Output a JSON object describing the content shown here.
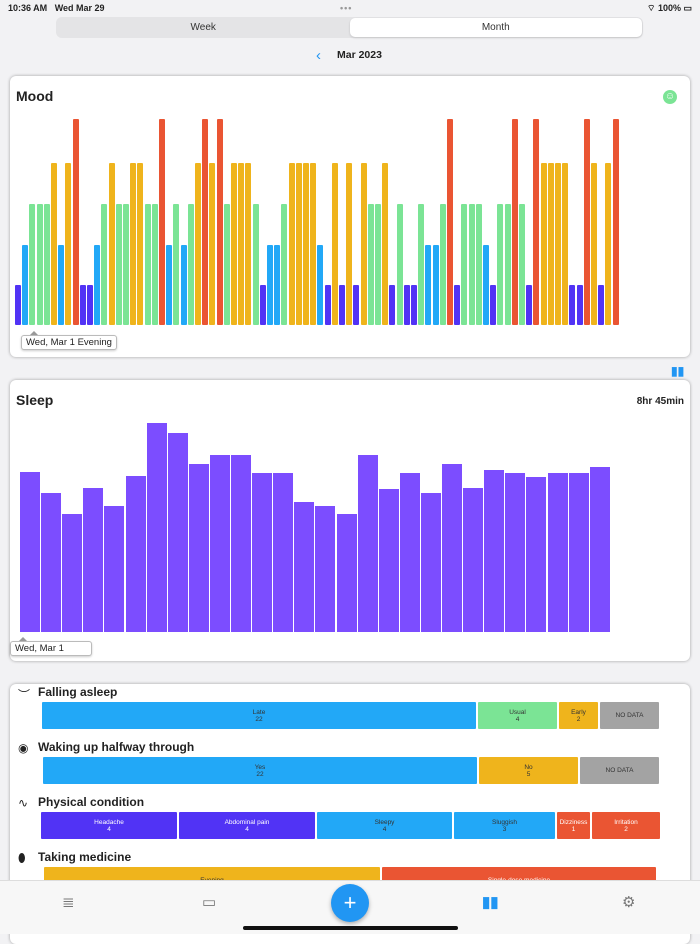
{
  "status": {
    "time": "10:36 AM",
    "date": "Wed Mar 29",
    "battery": "100%"
  },
  "segments": [
    "Week",
    "Month"
  ],
  "nav": {
    "period": "Mar 2023"
  },
  "colors": {
    "1": "#5133f5",
    "2": "#22a8f7",
    "3": "#7be495",
    "4": "#efb41c",
    "5": "#ea5533",
    "sleep": "#7c4dff",
    "nodata": "#a3a3a3"
  },
  "mood": {
    "title": "Mood",
    "tooltip": "Wed, Mar 1 Evening",
    "levels": [
      1,
      2,
      3,
      3,
      3,
      4,
      2,
      4,
      5,
      1,
      1,
      2,
      3,
      4,
      3,
      3,
      4,
      4,
      3,
      3,
      5,
      2,
      3,
      2,
      3,
      4,
      5,
      4,
      5,
      3,
      4,
      4,
      4,
      3,
      1,
      2,
      2,
      3,
      4,
      4,
      4,
      4,
      2,
      1,
      4,
      1,
      4,
      1,
      4,
      3,
      3,
      4,
      1,
      3,
      1,
      1,
      3,
      2,
      2,
      3,
      5,
      1,
      3,
      3,
      3,
      2,
      1,
      3,
      3,
      5,
      3,
      1,
      5,
      4,
      4,
      4,
      4,
      1,
      1,
      5,
      4,
      1,
      4,
      5
    ]
  },
  "sleep": {
    "title": "Sleep",
    "average": "8hr 45min",
    "tooltip": "Wed, Mar 1",
    "minutes": [
      540,
      469,
      398,
      486,
      425,
      527,
      706,
      672,
      567,
      598,
      598,
      537,
      537,
      439,
      425,
      398,
      598,
      483,
      537,
      469,
      567,
      486,
      547,
      537,
      523,
      537,
      537,
      557
    ],
    "ymax": 750
  },
  "stats": [
    {
      "title": "Falling asleep",
      "icon": "closed-eye",
      "segments": [
        {
          "label": "Late",
          "count": "22",
          "color": "#22a8f7"
        },
        {
          "label": "Usual",
          "count": "4",
          "color": "#7be495"
        },
        {
          "label": "Early",
          "count": "2",
          "color": "#efb41c"
        },
        {
          "label": "NO DATA",
          "count": "",
          "color": "#a3a3a3"
        }
      ]
    },
    {
      "title": "Waking up halfway through",
      "icon": "eye",
      "segments": [
        {
          "label": "Yes",
          "count": "22",
          "color": "#22a8f7"
        },
        {
          "label": "No",
          "count": "5",
          "color": "#efb41c"
        },
        {
          "label": "NO DATA",
          "count": "",
          "color": "#a3a3a3"
        }
      ]
    },
    {
      "title": "Physical condition",
      "icon": "pulse",
      "segments": [
        {
          "label": "Headache",
          "count": "4",
          "color": "#5133f5"
        },
        {
          "label": "Abdominal pain",
          "count": "4",
          "color": "#5133f5"
        },
        {
          "label": "Sleepy",
          "count": "4",
          "color": "#22a8f7"
        },
        {
          "label": "Sluggish",
          "count": "3",
          "color": "#22a8f7"
        },
        {
          "label": "Dizziness",
          "count": "1",
          "color": "#ea5533"
        },
        {
          "label": "Irritation",
          "count": "2",
          "color": "#ea5533"
        }
      ]
    },
    {
      "title": "Taking medicine",
      "icon": "pill",
      "segments": [
        {
          "label": "Evening",
          "count": "",
          "color": "#efb41c"
        },
        {
          "label": "Single-dose medicine",
          "count": "",
          "color": "#ea5533"
        }
      ]
    }
  ]
}
